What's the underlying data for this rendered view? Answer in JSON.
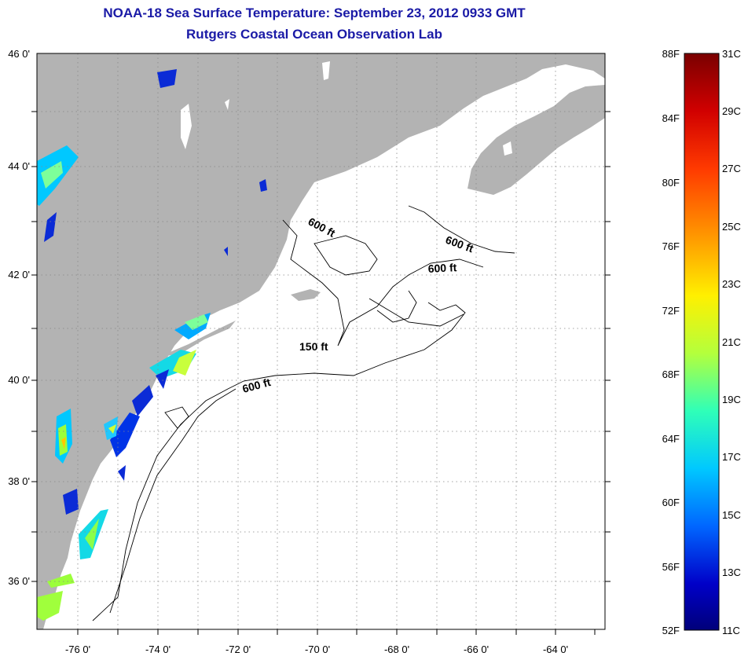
{
  "header": {
    "title": "NOAA-18 Sea Surface Temperature:  September 23, 2012 0933 GMT",
    "subtitle": "Rutgers Coastal Ocean Observation Lab"
  },
  "map": {
    "lat_labels": [
      "46 0'",
      "44 0'",
      "42 0'",
      "40 0'",
      "38 0'",
      "36 0'"
    ],
    "lon_labels": [
      "-76 0'",
      "-74 0'",
      "-72 0'",
      "-70 0'",
      "-68 0'",
      "-66 0'",
      "-64 0'"
    ],
    "contour_labels": [
      "600 ft",
      "600 ft",
      "600 ft",
      "150 ft",
      "600 ft"
    ],
    "colors": {
      "land": "#b3b3b3",
      "ocean": "#ffffff",
      "contour": "#000000"
    }
  },
  "colorbar": {
    "fahrenheit": [
      "88F",
      "84F",
      "80F",
      "76F",
      "72F",
      "68F",
      "64F",
      "60F",
      "56F",
      "52F"
    ],
    "celsius": [
      "31C",
      "29C",
      "27C",
      "25C",
      "23C",
      "21C",
      "19C",
      "17C",
      "15C",
      "13C",
      "11C"
    ],
    "colors": [
      "#7a0000",
      "#d10000",
      "#ff3a00",
      "#ff9a00",
      "#fff000",
      "#b4ff3c",
      "#2fffb8",
      "#00c8ff",
      "#0066ff",
      "#0000c8",
      "#00007a"
    ]
  }
}
